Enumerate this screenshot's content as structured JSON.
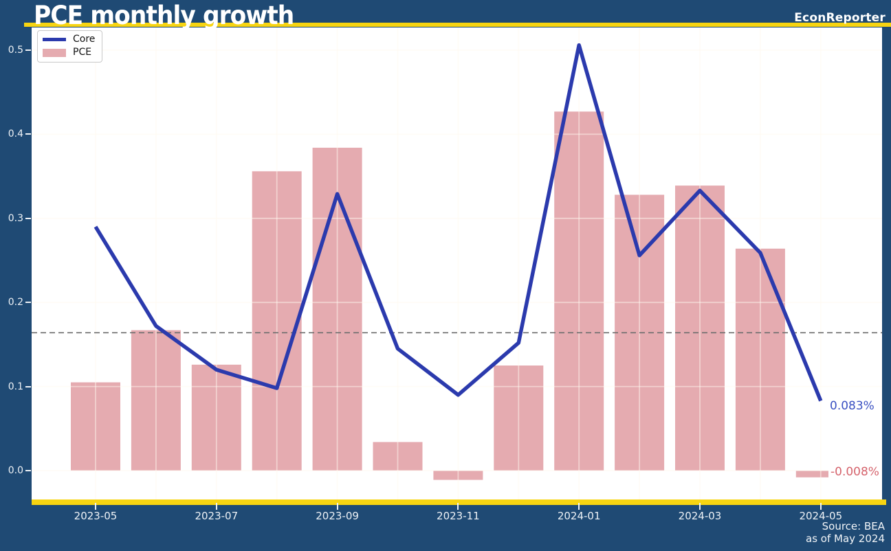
{
  "header": {
    "title": "PCE monthly growth",
    "brand": "EconReporter"
  },
  "legend": [
    {
      "label": "Core",
      "type": "line"
    },
    {
      "label": "PCE",
      "type": "patch"
    }
  ],
  "annotations": {
    "core_last": "0.083%",
    "pce_last": "-0.008%"
  },
  "footer": {
    "source": "Source: BEA",
    "as_of": "as of May 2024"
  },
  "colors": {
    "background": "#1f4a74",
    "accent_yellow": "#f7d411",
    "bar_pink": "#e5abb0",
    "line_blue": "#2b3aad",
    "annotation_blue": "#3a50c2",
    "annotation_red": "#d5636c",
    "reference_gray": "#6e6e6e"
  },
  "chart_data": {
    "type": "bar+line",
    "title": "PCE monthly growth",
    "categories": [
      "2023-05",
      "2023-06",
      "2023-07",
      "2023-08",
      "2023-09",
      "2023-10",
      "2023-11",
      "2023-12",
      "2024-01",
      "2024-02",
      "2024-03",
      "2024-04",
      "2024-05"
    ],
    "x_tick_labels": [
      "2023-05",
      "2023-07",
      "2023-09",
      "2023-11",
      "2024-01",
      "2024-03",
      "2024-05"
    ],
    "y_ticks": [
      0.0,
      0.1,
      0.2,
      0.3,
      0.4,
      0.5
    ],
    "ylim": [
      -0.034,
      0.527
    ],
    "grid": true,
    "legend_position": "upper-left",
    "series": [
      {
        "name": "Core",
        "type": "line",
        "values": [
          0.29,
          0.172,
          0.12,
          0.098,
          0.329,
          0.145,
          0.09,
          0.152,
          0.506,
          0.256,
          0.333,
          0.259,
          0.083
        ]
      },
      {
        "name": "PCE",
        "type": "bar",
        "values": [
          0.105,
          0.167,
          0.126,
          0.356,
          0.384,
          0.034,
          -0.011,
          0.125,
          0.427,
          0.328,
          0.339,
          0.264,
          -0.008
        ]
      }
    ],
    "reference_line_y": 0.164
  }
}
